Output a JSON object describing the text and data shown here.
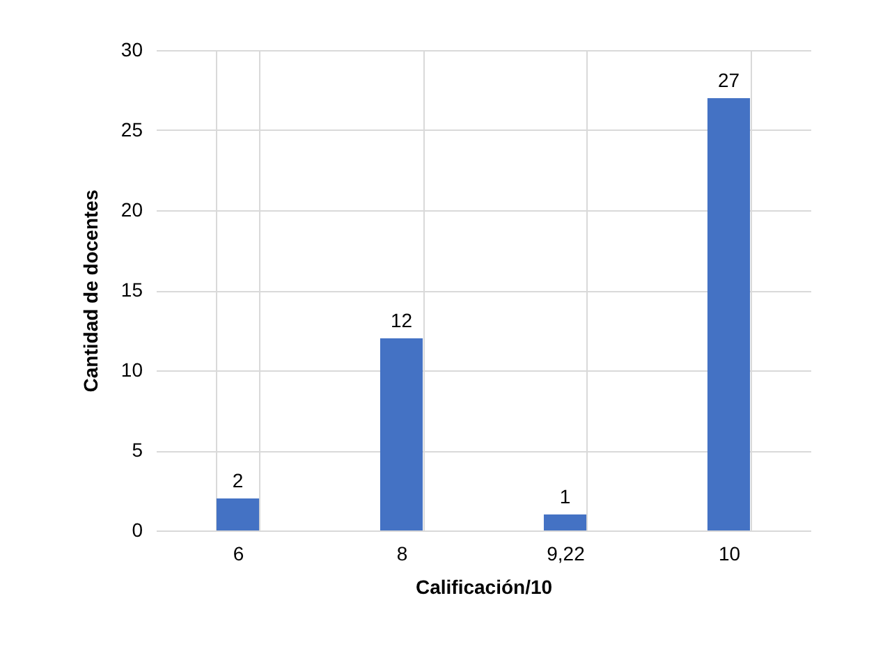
{
  "chart_data": {
    "type": "bar",
    "xlabel": "Calificación/10",
    "ylabel": "Cantidad de docentes",
    "categories": [
      "6",
      "8",
      "9,22",
      "10"
    ],
    "values": [
      2,
      12,
      1,
      27
    ],
    "color": "#4472c4",
    "ylim": [
      0,
      30
    ],
    "yticks": [
      0,
      5,
      10,
      15,
      20,
      25,
      30
    ],
    "grid": true,
    "data_labels": true
  }
}
